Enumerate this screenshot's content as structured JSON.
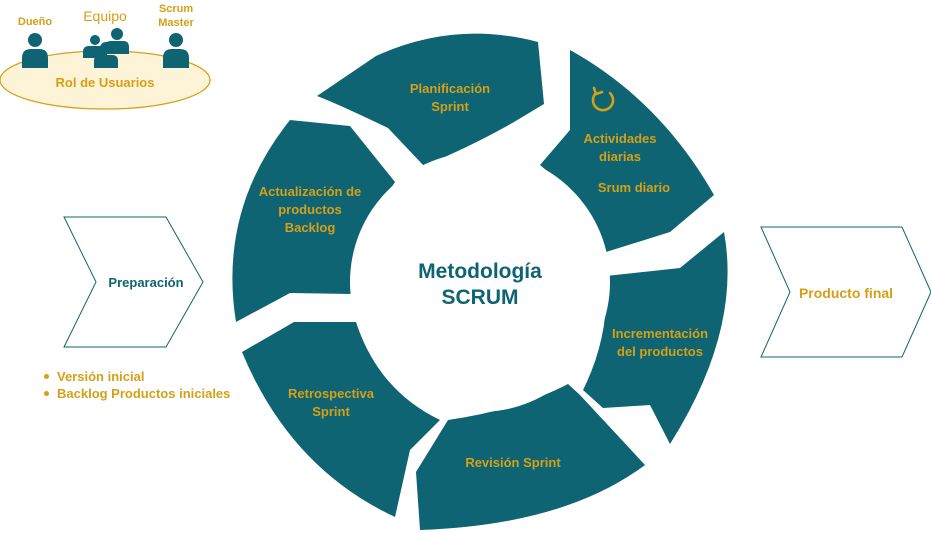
{
  "colors": {
    "primary": "#0e6472",
    "accent": "#d4a017",
    "roles_fill": "#fdf3d6"
  },
  "roles": {
    "owner": "Dueño",
    "team": "Equipo",
    "scrum_master_line1": "Scrum",
    "scrum_master_line2": "Master",
    "label": "Rol de Usuarios",
    "icons": [
      "person-icon",
      "team-icon",
      "person-icon"
    ]
  },
  "center": {
    "line1": "Metodología",
    "line2": "SCRUM"
  },
  "stages": {
    "planificacion": {
      "line1": "Planificación",
      "line2": "Sprint"
    },
    "actividades": {
      "line1": "Actividades",
      "line2": "diarias",
      "line3": "Srum diario",
      "icon": "refresh-icon"
    },
    "incrementacion": {
      "line1": "Incrementación",
      "line2": "del productos"
    },
    "revision": {
      "line1": "Revisión Sprint"
    },
    "retrospectiva": {
      "line1": "Retrospectiva",
      "line2": "Sprint"
    },
    "actualizacion": {
      "line1": "Actualización de",
      "line2": "productos",
      "line3": "Backlog"
    }
  },
  "preparacion": {
    "label": "Preparación",
    "bullets": [
      "Versión inicial",
      "Backlog Productos iniciales"
    ]
  },
  "producto_final": {
    "label": "Producto final"
  }
}
